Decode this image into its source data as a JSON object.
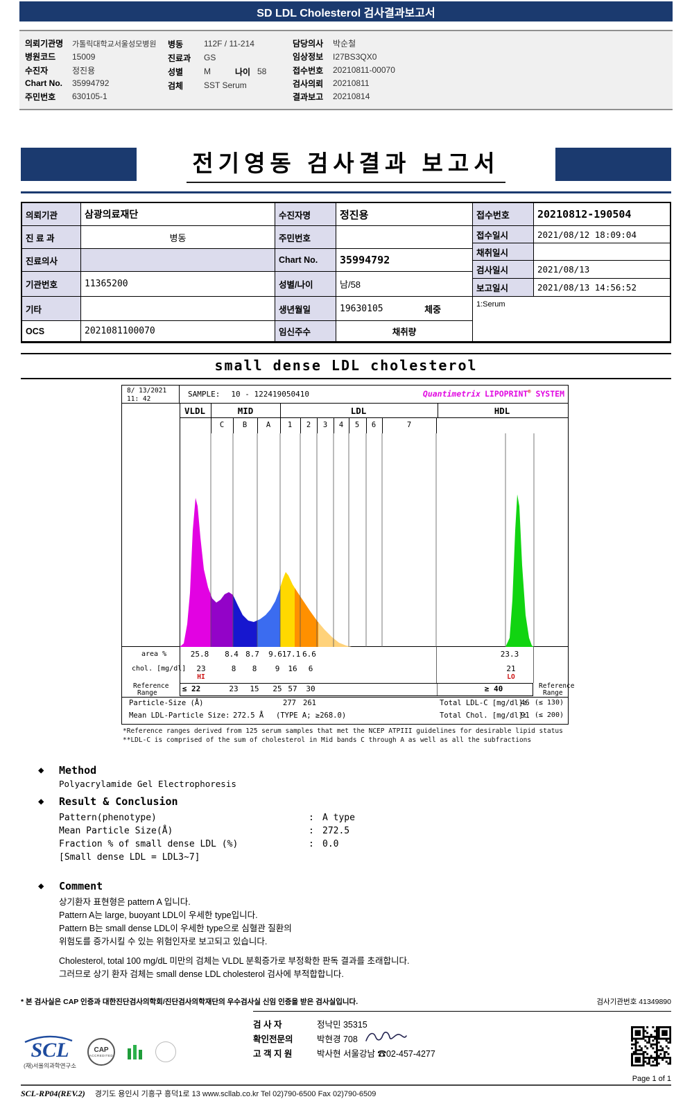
{
  "colors": {
    "navy": "#1b3a6f",
    "lavender": "#dcdced",
    "brand_magenta": "#e10ae1",
    "flag_red": "#cc1111"
  },
  "misc": {
    "bullet_icon": "◆",
    "reg_mark": "®",
    "colon": ":"
  },
  "top_bar": {
    "title": "SD LDL Cholesterol 검사결과보고서"
  },
  "patient_header": {
    "col1": [
      {
        "label": "의뢰기관명",
        "value": "가톨릭대학교서울성모병원"
      },
      {
        "label": "병원코드",
        "value": "15009"
      },
      {
        "label": "수진자",
        "value": "정진용"
      },
      {
        "label": "Chart No.",
        "value": "35994792"
      },
      {
        "label": "주민번호",
        "value": "630105-1"
      }
    ],
    "col2": [
      {
        "label": "병동",
        "value": "112F / 11-214"
      },
      {
        "label": "진료과",
        "value": "GS"
      },
      {
        "label": "성별",
        "value": "M",
        "label2": "나이",
        "value2": "58"
      },
      {
        "label": "검체",
        "value": "SST Serum"
      }
    ],
    "col3": [
      {
        "label": "담당의사",
        "value": "박순철"
      },
      {
        "label": "임상정보",
        "value": "I27BS3QX0"
      },
      {
        "label": "접수번호",
        "value": "20210811-00070"
      },
      {
        "label": "검사의뢰",
        "value": "20210811"
      },
      {
        "label": "결과보고",
        "value": "20210814"
      }
    ]
  },
  "banner": {
    "title": "전기영동 검사결과 보고서"
  },
  "info_table": {
    "left": {
      "r1_label": "의뢰기관",
      "r1_value": "삼광의료재단",
      "r2_label": "진 료 과",
      "r2_value": "병동",
      "r3_label": "진료의사",
      "r3_value": "",
      "r4_label": "기관번호",
      "r4_value": "11365200",
      "r5_label": "기타",
      "r5_value": "",
      "r6_label": "OCS",
      "r6_value": "2021081100070"
    },
    "mid": {
      "r1_label": "수진자명",
      "r1_value": "정진용",
      "r2_label": "주민번호",
      "r2_value": "",
      "r3_label": "Chart No.",
      "r3_value": "35994792",
      "r4_label": "성별/나이",
      "r4_value": "남/58",
      "r5_label": "생년월일",
      "r5_value": "19630105",
      "r5_extra": "체중",
      "r6_label": "임신주수",
      "r6_extra": "채취량"
    },
    "right": {
      "r1_label": "접수번호",
      "r1_value": "20210812-190504",
      "r2_label": "접수일시",
      "r2_value": "2021/08/12 18:09:04",
      "r3_label": "채취일시",
      "r3_value": "",
      "r4_label": "검사일시",
      "r4_value": "2021/08/13",
      "r5_label": "보고일시",
      "r5_value": "2021/08/13 14:56:52",
      "serum_note": "1:Serum"
    }
  },
  "chart_data": {
    "type": "area",
    "title": "small dense LDL cholesterol",
    "instrument_header": {
      "date": "8/ 13/2021",
      "time": "11: 42",
      "sample_label": "SAMPLE:",
      "sample_id": "10 - 122419050410",
      "system_brand": "Quantimetrix",
      "system_name": "LIPOPRINT",
      "system_suffix": "SYSTEM"
    },
    "bands": [
      "VLDL",
      "MID",
      "LDL",
      "HDL"
    ],
    "subbands": [
      "C",
      "B",
      "A",
      "1",
      "2",
      "3",
      "4",
      "5",
      "6",
      "7"
    ],
    "rows": {
      "area_label": "area %",
      "chol_label": "chol. [mg/dl]",
      "ref_label_line1": "Reference",
      "ref_label_line2": "Range",
      "particle_label": "Particle-Size (Å)",
      "mean_label": "Mean LDL-Particle Size:",
      "mean_value": "272.5 Å",
      "mean_note": "(TYPE A; ≥268.0)"
    },
    "area_pct": [
      "25.8",
      "8.4",
      "8.7",
      "9.6",
      "17.1",
      "6.6",
      "23.3"
    ],
    "chol_mg_dl": [
      "23",
      "8",
      "8",
      "9",
      "16",
      "6",
      "21"
    ],
    "flag_hi": "HI",
    "flag_lo": "LO",
    "reference_range": [
      "≤ 22",
      "23",
      "15",
      "25",
      "57",
      "30",
      "≥ 40"
    ],
    "particle_sizes": [
      "277",
      "261"
    ],
    "total_ldl": {
      "label": "Total LDL-C [mg/dl]:",
      "value": "46",
      "ref": "(≤ 130)"
    },
    "total_chol": {
      "label": "Total Chol. [mg/dl]:",
      "value": "91",
      "ref": "(≤ 200)"
    },
    "footnote1": "*Reference ranges derived from 125 serum samples that met the NCEP ATPIII guidelines for desirable lipid status",
    "footnote2": "**LDL-C is comprised of the sum of cholesterol in Mid bands C through A as well as all the subfractions",
    "curve": {
      "points": [
        [
          0,
          308
        ],
        [
          6,
          303
        ],
        [
          11,
          275
        ],
        [
          15,
          230
        ],
        [
          19,
          140
        ],
        [
          23,
          93
        ],
        [
          26,
          105
        ],
        [
          30,
          150
        ],
        [
          35,
          196
        ],
        [
          41,
          222
        ],
        [
          47,
          238
        ],
        [
          53,
          244
        ],
        [
          59,
          240
        ],
        [
          65,
          232
        ],
        [
          71,
          229
        ],
        [
          77,
          233
        ],
        [
          84,
          248
        ],
        [
          91,
          262
        ],
        [
          99,
          270
        ],
        [
          107,
          272
        ],
        [
          116,
          268
        ],
        [
          124,
          262
        ],
        [
          131,
          254
        ],
        [
          138,
          242
        ],
        [
          144,
          226
        ],
        [
          149,
          210
        ],
        [
          153,
          200
        ],
        [
          157,
          205
        ],
        [
          163,
          218
        ],
        [
          170,
          229
        ],
        [
          178,
          241
        ],
        [
          188,
          256
        ],
        [
          198,
          270
        ],
        [
          209,
          283
        ],
        [
          220,
          294
        ],
        [
          230,
          302
        ],
        [
          240,
          306
        ],
        [
          248,
          308
        ],
        [
          470,
          308
        ],
        [
          476,
          295
        ],
        [
          480,
          240
        ],
        [
          484,
          140
        ],
        [
          487,
          88
        ],
        [
          490,
          105
        ],
        [
          494,
          190
        ],
        [
          499,
          262
        ],
        [
          504,
          295
        ],
        [
          508,
          306
        ],
        [
          511,
          308
        ]
      ],
      "bands": [
        [
          "#e202e2",
          0,
          45
        ],
        [
          "#9303c8",
          45,
          77
        ],
        [
          "#1717cf",
          77,
          112
        ],
        [
          "#3b6cf0",
          112,
          145
        ],
        [
          "#ffd800",
          145,
          166
        ],
        [
          "#ff9000",
          166,
          200
        ],
        [
          "#ffd27a",
          200,
          248
        ],
        [
          "#11d411",
          470,
          511
        ]
      ],
      "gridlines": [
        45,
        77,
        112,
        145,
        174,
        198,
        222,
        244,
        269,
        292,
        370,
        470,
        511
      ]
    }
  },
  "method": {
    "title": "Method",
    "body": "Polyacrylamide Gel Electrophoresis"
  },
  "result": {
    "title": "Result & Conclusion",
    "rows": [
      {
        "label": "Pattern(phenotype)",
        "value": "A type"
      },
      {
        "label": "Mean Particle Size(Å)",
        "value": "272.5"
      },
      {
        "label": "Fraction % of small dense LDL (%)",
        "value": "0.0"
      }
    ],
    "note": "[Small dense LDL = LDL3~7]"
  },
  "comment": {
    "title": "Comment",
    "lines1": [
      "상기환자 표현형은 pattern A 입니다.",
      "Pattern A는 large, buoyant LDL이 우세한 type입니다.",
      "Pattern B는 small dense LDL이 우세한 type으로 심혈관 질환의",
      "위험도를 증가시킬 수 있는 위험인자로 보고되고 있습니다."
    ],
    "lines2": [
      "Cholesterol, total 100 mg/dL 미만의 검체는 VLDL 분획증가로 부정확한 판독 결과를 초래합니다.",
      "그러므로 상기 환자 검체는 small dense LDL cholesterol 검사에 부적합합니다."
    ]
  },
  "footer": {
    "cert_line": "* 본 검사실은 CAP 인증과 대한진단검사의학회/진단검사의학재단의 우수검사실 신임 인증을 받은 검사실입니다.",
    "lab_no": "검사기관번호 41349890",
    "staff": [
      {
        "label": "검  사  자",
        "value": "정낙민 35315"
      },
      {
        "label": "확인전문의",
        "value": "박현경 708"
      },
      {
        "label": "고 객 지 원",
        "value": "박사현 서울강남 ☎02-457-4277"
      }
    ],
    "scl_logo": "SCL",
    "scl_sub": "(재)서울의과학연구소",
    "cap_logo": "CAP",
    "cap_sub": "ACCREDITED",
    "doc_code": "SCL-RP04(REV.2)",
    "address": "경기도 용인시 기흥구 흥덕1로 13   www.scllab.co.kr   Tel 02)790-6500   Fax 02)790-6509",
    "page": "Page 1 of 1"
  }
}
